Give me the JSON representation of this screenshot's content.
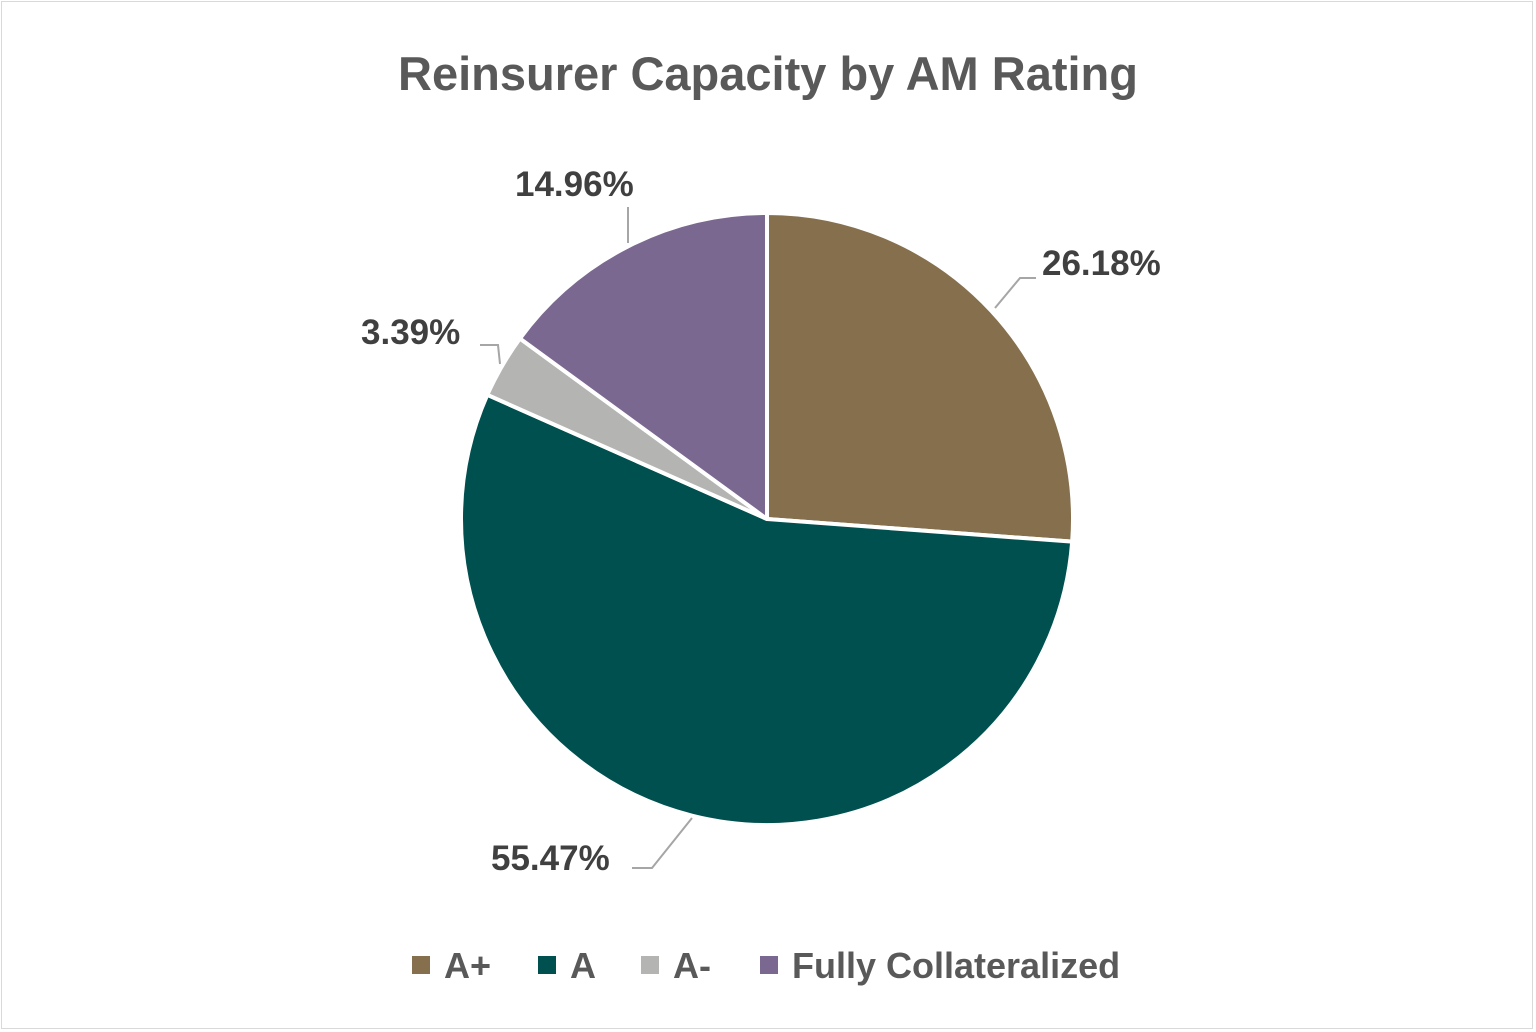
{
  "chart_data": {
    "type": "pie",
    "title": "Reinsurer Capacity by AM Rating",
    "categories": [
      "A+",
      "A",
      "A-",
      "Fully Collateralized"
    ],
    "values": [
      26.18,
      55.47,
      3.39,
      14.96
    ],
    "data_labels": [
      "26.18%",
      "55.47%",
      "3.39%",
      "14.96%"
    ],
    "colors": [
      "#866F4C",
      "#00504F",
      "#B4B5B2",
      "#7A6890"
    ],
    "start_angle": "12 o'clock, clockwise",
    "legend_position": "bottom"
  }
}
